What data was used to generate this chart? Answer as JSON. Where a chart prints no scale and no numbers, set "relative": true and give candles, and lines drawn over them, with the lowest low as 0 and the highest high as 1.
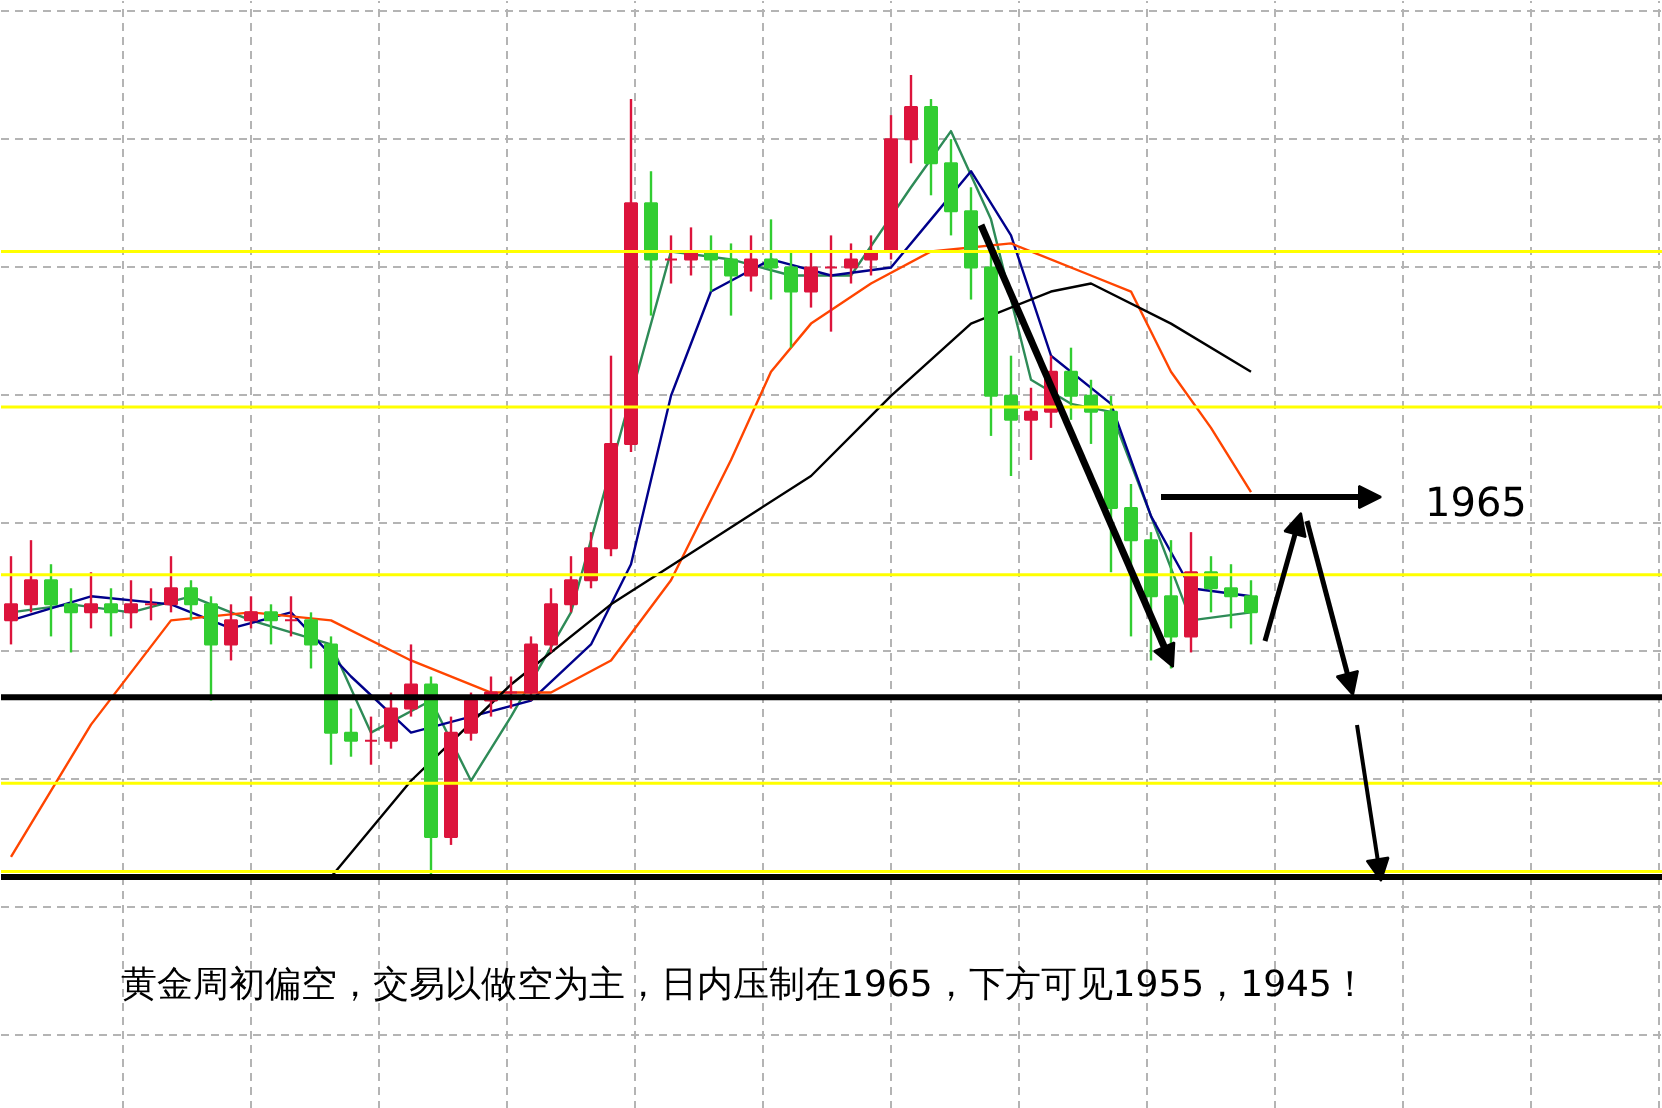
{
  "chart_data": {
    "type": "candlestick",
    "relative": true,
    "grid": true,
    "categories": [
      null,
      null,
      null,
      null,
      null,
      null,
      null,
      null,
      null,
      null,
      null,
      null,
      null,
      null,
      null,
      null,
      null,
      null,
      null,
      null,
      null,
      null,
      null,
      null,
      null,
      null,
      null,
      null,
      null,
      null,
      null,
      null,
      null,
      null,
      null,
      null,
      null,
      null,
      null,
      null,
      null,
      null,
      null,
      null,
      null,
      null,
      null,
      null,
      null,
      null,
      null,
      null,
      null,
      null,
      null,
      null,
      null,
      null,
      null,
      null,
      null,
      null,
      null
    ],
    "ohlc": [
      [
        0.32,
        0.4,
        0.29,
        0.34
      ],
      [
        0.34,
        0.42,
        0.33,
        0.37
      ],
      [
        0.37,
        0.39,
        0.3,
        0.34
      ],
      [
        0.34,
        0.36,
        0.28,
        0.33
      ],
      [
        0.33,
        0.38,
        0.31,
        0.34
      ],
      [
        0.34,
        0.36,
        0.3,
        0.33
      ],
      [
        0.33,
        0.37,
        0.31,
        0.34
      ],
      [
        0.34,
        0.36,
        0.32,
        0.34
      ],
      [
        0.34,
        0.4,
        0.33,
        0.36
      ],
      [
        0.36,
        0.37,
        0.32,
        0.34
      ],
      [
        0.34,
        0.35,
        0.22,
        0.29
      ],
      [
        0.29,
        0.34,
        0.27,
        0.32
      ],
      [
        0.32,
        0.35,
        0.31,
        0.33
      ],
      [
        0.33,
        0.34,
        0.29,
        0.32
      ],
      [
        0.32,
        0.35,
        0.3,
        0.32
      ],
      [
        0.32,
        0.33,
        0.26,
        0.29
      ],
      [
        0.29,
        0.3,
        0.14,
        0.18
      ],
      [
        0.18,
        0.21,
        0.15,
        0.17
      ],
      [
        0.17,
        0.2,
        0.14,
        0.17
      ],
      [
        0.17,
        0.23,
        0.16,
        0.21
      ],
      [
        0.21,
        0.29,
        0.2,
        0.24
      ],
      [
        0.24,
        0.25,
        0.0,
        0.05
      ],
      [
        0.05,
        0.2,
        0.04,
        0.18
      ],
      [
        0.18,
        0.23,
        0.17,
        0.22
      ],
      [
        0.22,
        0.25,
        0.2,
        0.23
      ],
      [
        0.23,
        0.25,
        0.21,
        0.23
      ],
      [
        0.23,
        0.3,
        0.22,
        0.29
      ],
      [
        0.29,
        0.36,
        0.28,
        0.34
      ],
      [
        0.34,
        0.4,
        0.33,
        0.37
      ],
      [
        0.37,
        0.43,
        0.36,
        0.41
      ],
      [
        0.41,
        0.65,
        0.4,
        0.54
      ],
      [
        0.54,
        0.97,
        0.53,
        0.84
      ],
      [
        0.84,
        0.88,
        0.7,
        0.77
      ],
      [
        0.77,
        0.8,
        0.74,
        0.77
      ],
      [
        0.77,
        0.81,
        0.75,
        0.78
      ],
      [
        0.78,
        0.8,
        0.73,
        0.77
      ],
      [
        0.77,
        0.79,
        0.7,
        0.75
      ],
      [
        0.75,
        0.8,
        0.73,
        0.77
      ],
      [
        0.77,
        0.82,
        0.72,
        0.76
      ],
      [
        0.76,
        0.78,
        0.66,
        0.73
      ],
      [
        0.73,
        0.78,
        0.71,
        0.76
      ],
      [
        0.76,
        0.8,
        0.68,
        0.76
      ],
      [
        0.76,
        0.79,
        0.74,
        0.77
      ],
      [
        0.77,
        0.8,
        0.75,
        0.78
      ],
      [
        0.78,
        0.95,
        0.77,
        0.92
      ],
      [
        0.92,
        1.0,
        0.89,
        0.96
      ],
      [
        0.96,
        0.97,
        0.85,
        0.89
      ],
      [
        0.89,
        0.92,
        0.8,
        0.83
      ],
      [
        0.83,
        0.86,
        0.72,
        0.76
      ],
      [
        0.76,
        0.78,
        0.55,
        0.6
      ],
      [
        0.6,
        0.65,
        0.5,
        0.57
      ],
      [
        0.57,
        0.61,
        0.52,
        0.58
      ],
      [
        0.58,
        0.65,
        0.56,
        0.63
      ],
      [
        0.63,
        0.66,
        0.57,
        0.6
      ],
      [
        0.6,
        0.62,
        0.54,
        0.58
      ],
      [
        0.58,
        0.6,
        0.38,
        0.46
      ],
      [
        0.46,
        0.49,
        0.3,
        0.42
      ],
      [
        0.42,
        0.43,
        0.27,
        0.35
      ],
      [
        0.35,
        0.42,
        0.26,
        0.3
      ],
      [
        0.3,
        0.43,
        0.28,
        0.38
      ],
      [
        0.38,
        0.4,
        0.33,
        0.36
      ],
      [
        0.36,
        0.39,
        0.31,
        0.35
      ],
      [
        0.35,
        0.37,
        0.29,
        0.33
      ]
    ],
    "series": [
      {
        "type": "line",
        "color": "#2e8b57",
        "values": [
          0.33,
          null,
          null,
          0.34,
          null,
          null,
          0.33,
          null,
          null,
          0.35,
          null,
          null,
          0.32,
          null,
          null,
          null,
          0.29,
          null,
          0.18,
          null,
          null,
          0.22,
          null,
          0.12,
          null,
          0.2,
          null,
          null,
          0.33,
          null,
          null,
          null,
          null,
          0.78,
          null,
          null,
          0.77,
          null,
          null,
          0.75,
          null,
          null,
          0.75,
          null,
          null,
          0.86,
          null,
          0.93,
          null,
          0.82,
          null,
          0.62,
          null,
          0.59,
          null,
          0.58,
          null,
          null,
          null,
          0.32,
          null,
          null,
          0.33
        ]
      },
      {
        "type": "line",
        "color": "#00008b",
        "values": [
          0.32,
          null,
          null,
          null,
          0.35,
          null,
          null,
          null,
          0.34,
          null,
          null,
          0.31,
          null,
          null,
          0.33,
          null,
          null,
          0.25,
          null,
          null,
          0.18,
          null,
          null,
          0.2,
          null,
          null,
          0.22,
          null,
          null,
          0.29,
          null,
          0.39,
          null,
          0.6,
          null,
          0.73,
          null,
          null,
          0.77,
          null,
          null,
          0.75,
          null,
          null,
          0.76,
          null,
          0.82,
          null,
          0.88,
          null,
          0.8,
          null,
          0.65,
          null,
          null,
          0.59,
          null,
          0.45,
          null,
          0.36,
          null,
          null,
          0.35
        ]
      },
      {
        "type": "line",
        "color": "#ff4500",
        "values": [
          0.025,
          null,
          null,
          null,
          0.19,
          null,
          null,
          null,
          0.32,
          null,
          null,
          null,
          0.33,
          null,
          null,
          null,
          0.32,
          null,
          null,
          null,
          0.27,
          null,
          null,
          null,
          0.23,
          null,
          null,
          0.23,
          null,
          null,
          0.27,
          null,
          null,
          0.37,
          null,
          null,
          0.52,
          null,
          0.63,
          null,
          0.69,
          null,
          null,
          0.74,
          null,
          null,
          0.78,
          null,
          null,
          null,
          0.79,
          null,
          null,
          null,
          0.75,
          null,
          0.73,
          null,
          0.63,
          null,
          0.56,
          null,
          0.48
        ]
      },
      {
        "type": "line",
        "color": "#000000",
        "values": [
          null,
          null,
          null,
          null,
          null,
          null,
          null,
          null,
          null,
          null,
          null,
          null,
          null,
          null,
          null,
          null,
          0.0,
          null,
          null,
          null,
          0.12,
          null,
          null,
          null,
          null,
          0.24,
          null,
          null,
          null,
          null,
          0.34,
          null,
          null,
          null,
          null,
          0.42,
          null,
          null,
          null,
          null,
          0.5,
          null,
          null,
          null,
          0.6,
          null,
          null,
          null,
          0.69,
          null,
          null,
          null,
          0.73,
          null,
          0.74,
          null,
          null,
          null,
          0.69,
          null,
          null,
          null,
          0.63
        ]
      }
    ],
    "ref_lines": [
      {
        "axis": "y",
        "value": 0.78,
        "color": "#ffff00"
      },
      {
        "axis": "y",
        "value": 0.586,
        "color": "#ffff00"
      },
      {
        "axis": "y",
        "value": 0.377,
        "color": "#ffff00"
      },
      {
        "axis": "y",
        "value": 0.224,
        "color": "#000000"
      },
      {
        "axis": "y",
        "value": 0.117,
        "color": "#ffff00"
      },
      {
        "axis": "y",
        "value": 0.007,
        "color": "#ffff00"
      },
      {
        "axis": "y",
        "value": 0.0,
        "color": "#000000"
      }
    ],
    "annotations": [
      "1965",
      "黄金周初偏空，交易以做空为主，日内压制在1965，下方可见1955，1945！"
    ]
  }
}
